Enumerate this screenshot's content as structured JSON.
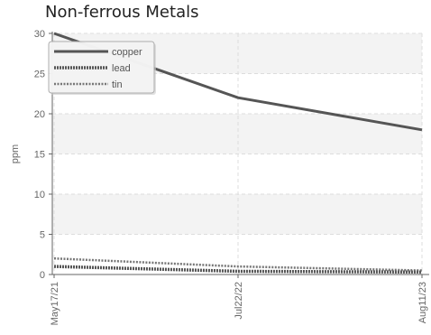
{
  "chart_data": {
    "type": "line",
    "title": "Non-ferrous Metals",
    "xlabel": "",
    "ylabel": "ppm",
    "x": [
      "May17/21",
      "Jul22/22",
      "Aug11/23"
    ],
    "ylim": [
      0,
      30
    ],
    "yticks": [
      0,
      5,
      10,
      15,
      20,
      25,
      30
    ],
    "grid": true,
    "legend_position": "top-left",
    "series": [
      {
        "name": "copper",
        "values": [
          30,
          22,
          18
        ],
        "color": "#555555",
        "style": "solid"
      },
      {
        "name": "lead",
        "values": [
          1.0,
          0.4,
          0.3
        ],
        "color": "#555555",
        "style": "dense-dotted"
      },
      {
        "name": "tin",
        "values": [
          2.0,
          1.0,
          0.5
        ],
        "color": "#777777",
        "style": "dotted"
      }
    ]
  }
}
